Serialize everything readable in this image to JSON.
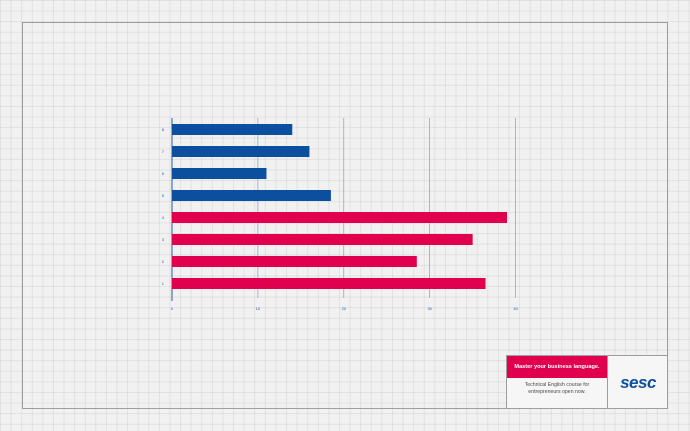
{
  "chart_data": {
    "type": "bar",
    "orientation": "horizontal",
    "categories": [
      "1",
      "2",
      "3",
      "4",
      "5",
      "6",
      "7",
      "8"
    ],
    "values": [
      36.5,
      28.5,
      35,
      39,
      18.5,
      11,
      16,
      14
    ],
    "bar_colors": [
      "#e0004d",
      "#e0004d",
      "#e0004d",
      "#e0004d",
      "#0c4f9e",
      "#0c4f9e",
      "#0c4f9e",
      "#0c4f9e"
    ],
    "xticks": [
      0,
      10,
      20,
      30,
      40
    ],
    "xlim": [
      0,
      39
    ],
    "grid": "vertical",
    "title": "",
    "xlabel": "",
    "ylabel": ""
  },
  "brand": {
    "headline": "Master your business language.",
    "subline_1": "Technical English course for",
    "subline_2": "entrepreneurs open now.",
    "logo_text": "sesc"
  },
  "colors": {
    "red": "#e0004d",
    "blue": "#0c4f9e",
    "axis": "#2a5c9b"
  }
}
